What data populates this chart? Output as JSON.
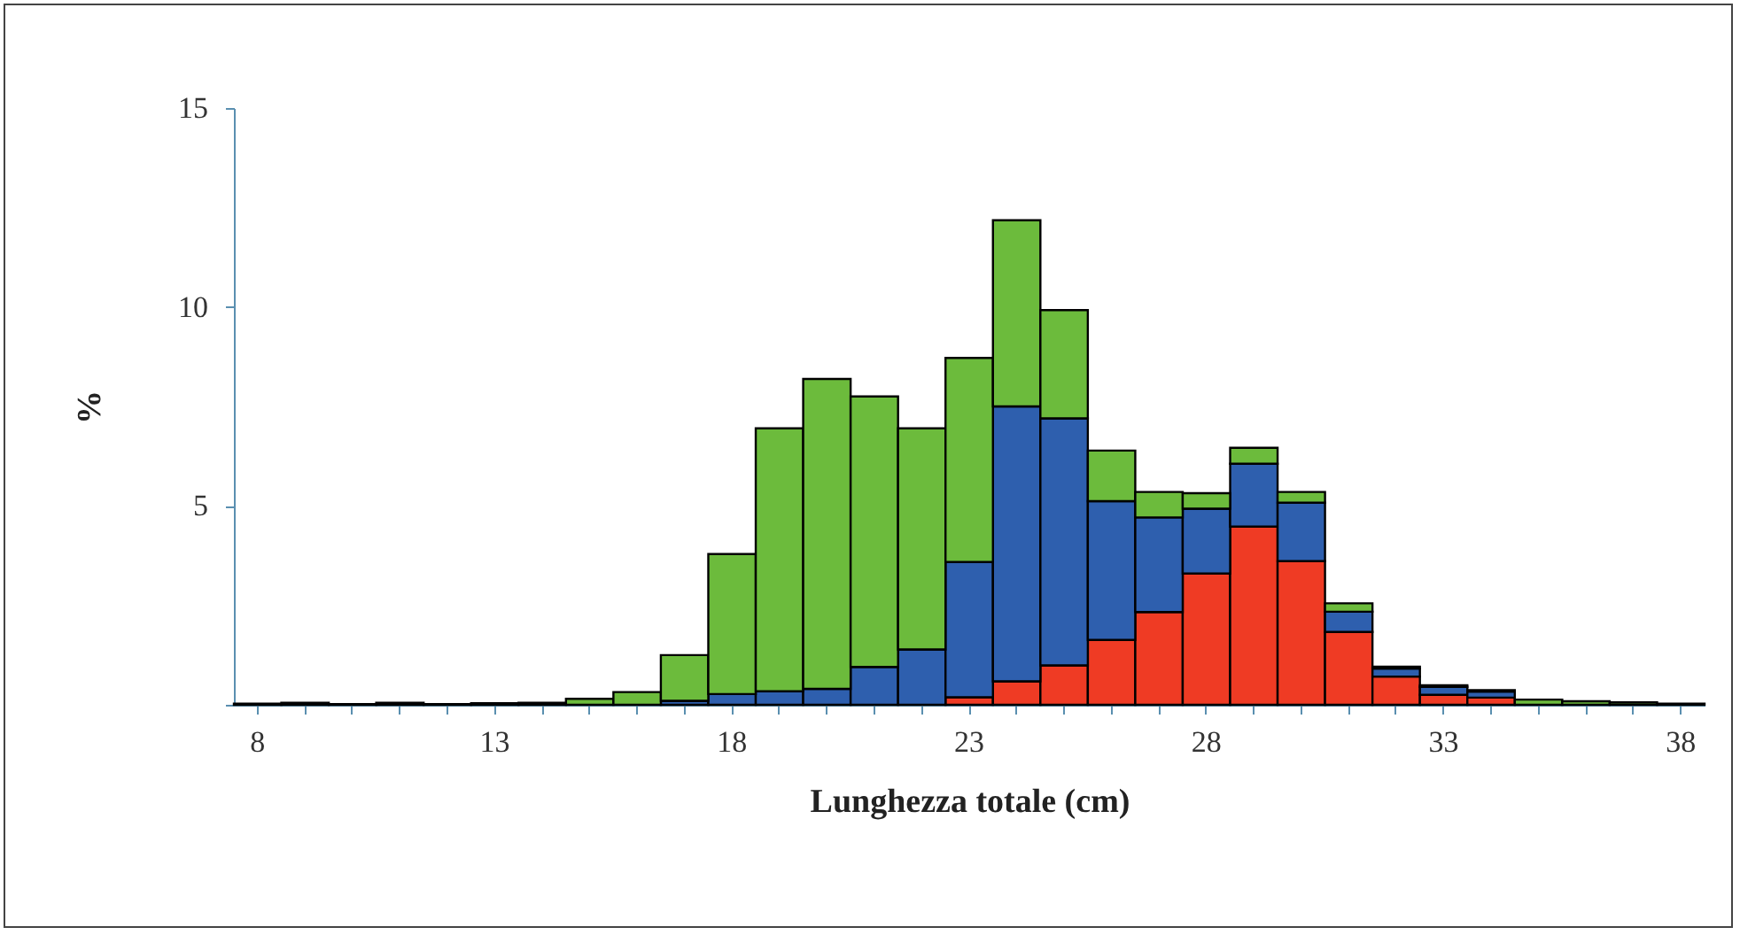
{
  "chart_data": {
    "type": "bar",
    "stacked": true,
    "xlabel": "Lunghezza totale (cm)",
    "ylabel": "%",
    "categories": [
      "8",
      null,
      null,
      null,
      null,
      "13",
      null,
      null,
      null,
      null,
      "18",
      null,
      null,
      null,
      null,
      "23",
      null,
      null,
      null,
      null,
      "28",
      null,
      null,
      null,
      null,
      "33",
      null,
      null,
      null,
      null,
      "38"
    ],
    "series": [
      {
        "color": "#ef3b24",
        "values": [
          null,
          null,
          null,
          null,
          null,
          null,
          null,
          null,
          null,
          null,
          null,
          null,
          null,
          null,
          null,
          0.19,
          0.59,
          0.99,
          1.63,
          2.33,
          3.3,
          4.48,
          3.61,
          1.83,
          0.71,
          0.25,
          0.18,
          null,
          null,
          null,
          null
        ]
      },
      {
        "color": "#2e5fae",
        "values": [
          null,
          null,
          null,
          null,
          null,
          null,
          null,
          null,
          null,
          0.1,
          0.27,
          0.34,
          0.4,
          0.95,
          1.39,
          3.4,
          6.91,
          6.21,
          3.49,
          2.38,
          1.63,
          1.58,
          1.47,
          0.51,
          0.2,
          0.2,
          0.15,
          null,
          null,
          null,
          null
        ]
      },
      {
        "color": "#6cbb3c",
        "values": [
          0.03,
          0.05,
          0.02,
          0.05,
          0.02,
          0.04,
          0.05,
          0.15,
          0.32,
          1.15,
          3.52,
          6.61,
          7.79,
          6.8,
          5.56,
          5.13,
          4.68,
          2.72,
          1.27,
          0.64,
          0.39,
          0.4,
          0.27,
          0.21,
          0.05,
          0.04,
          0.04,
          0.13,
          0.09,
          0.06,
          0.03
        ]
      }
    ],
    "ylim": [
      0,
      15
    ],
    "yticks": [
      {
        "value": 0,
        "label": null
      },
      5,
      10,
      15
    ],
    "grid": false
  }
}
